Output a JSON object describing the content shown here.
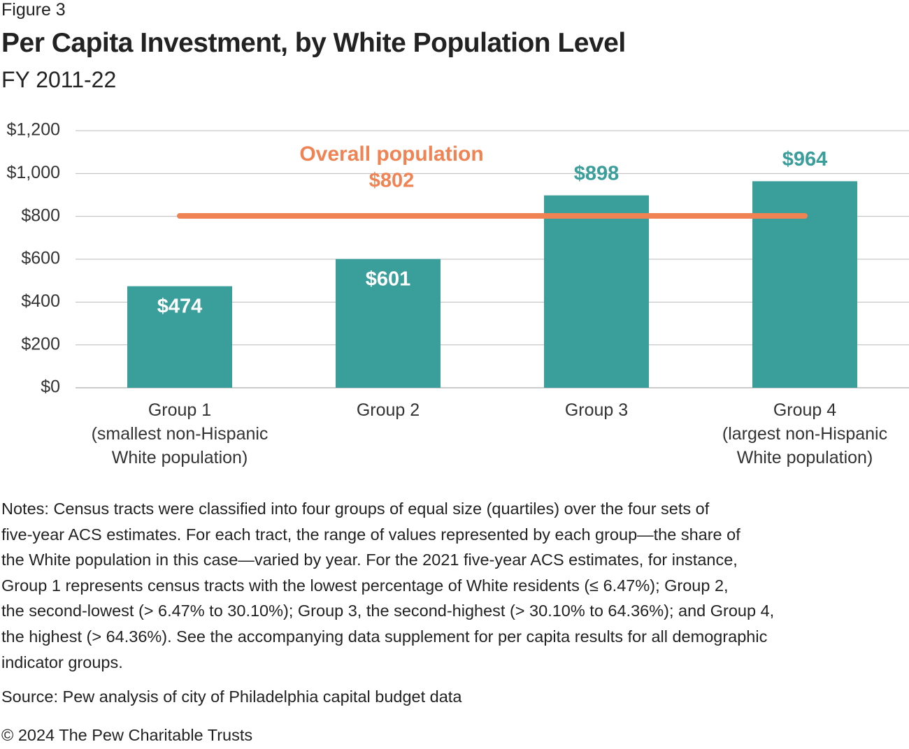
{
  "figure_label": "Figure 3",
  "chart_data": {
    "type": "bar",
    "title": "Per Capita Investment, by White Population Level",
    "subtitle": "FY 2011-22",
    "categories": [
      "Group 1\n(smallest non-Hispanic\nWhite population)",
      "Group 2",
      "Group 3",
      "Group 4\n(largest non-Hispanic\nWhite population)"
    ],
    "values": [
      474,
      601,
      898,
      964
    ],
    "value_labels": [
      "$474",
      "$601",
      "$898",
      "$964"
    ],
    "color": "#3a9e9a",
    "ylim": [
      0,
      1200
    ],
    "yticks": [
      {
        "value": 0,
        "label": "$0"
      },
      {
        "value": 200,
        "label": "$200"
      },
      {
        "value": 400,
        "label": "$400"
      },
      {
        "value": 600,
        "label": "$600"
      },
      {
        "value": 800,
        "label": "$800"
      },
      {
        "value": 1000,
        "label": "$1,000"
      },
      {
        "value": 1200,
        "label": "$1,200"
      }
    ],
    "grid": true,
    "reference_line": {
      "label": "Overall population",
      "value": 802,
      "value_label": "$802",
      "color": "#ef8354"
    }
  },
  "notes": "Notes: Census tracts were classified into four groups of equal size (quartiles) over the four sets of\nfive-year ACS estimates. For each tract, the range of values represented by each group—the share of\nthe White population in this case—varied by year. For the 2021 five-year ACS estimates, for instance,\nGroup 1 represents census tracts with the lowest percentage of White residents (≤ 6.47%); Group 2,\nthe second-lowest (> 6.47% to 30.10%); Group 3, the second-highest (> 30.10% to 64.36%); and Group 4,\nthe highest (> 64.36%). See the accompanying data supplement for per capita results for all demographic\nindicator groups.",
  "source": "Source: Pew analysis of city of Philadelphia capital budget data",
  "copyright": "© 2024 The Pew Charitable Trusts"
}
